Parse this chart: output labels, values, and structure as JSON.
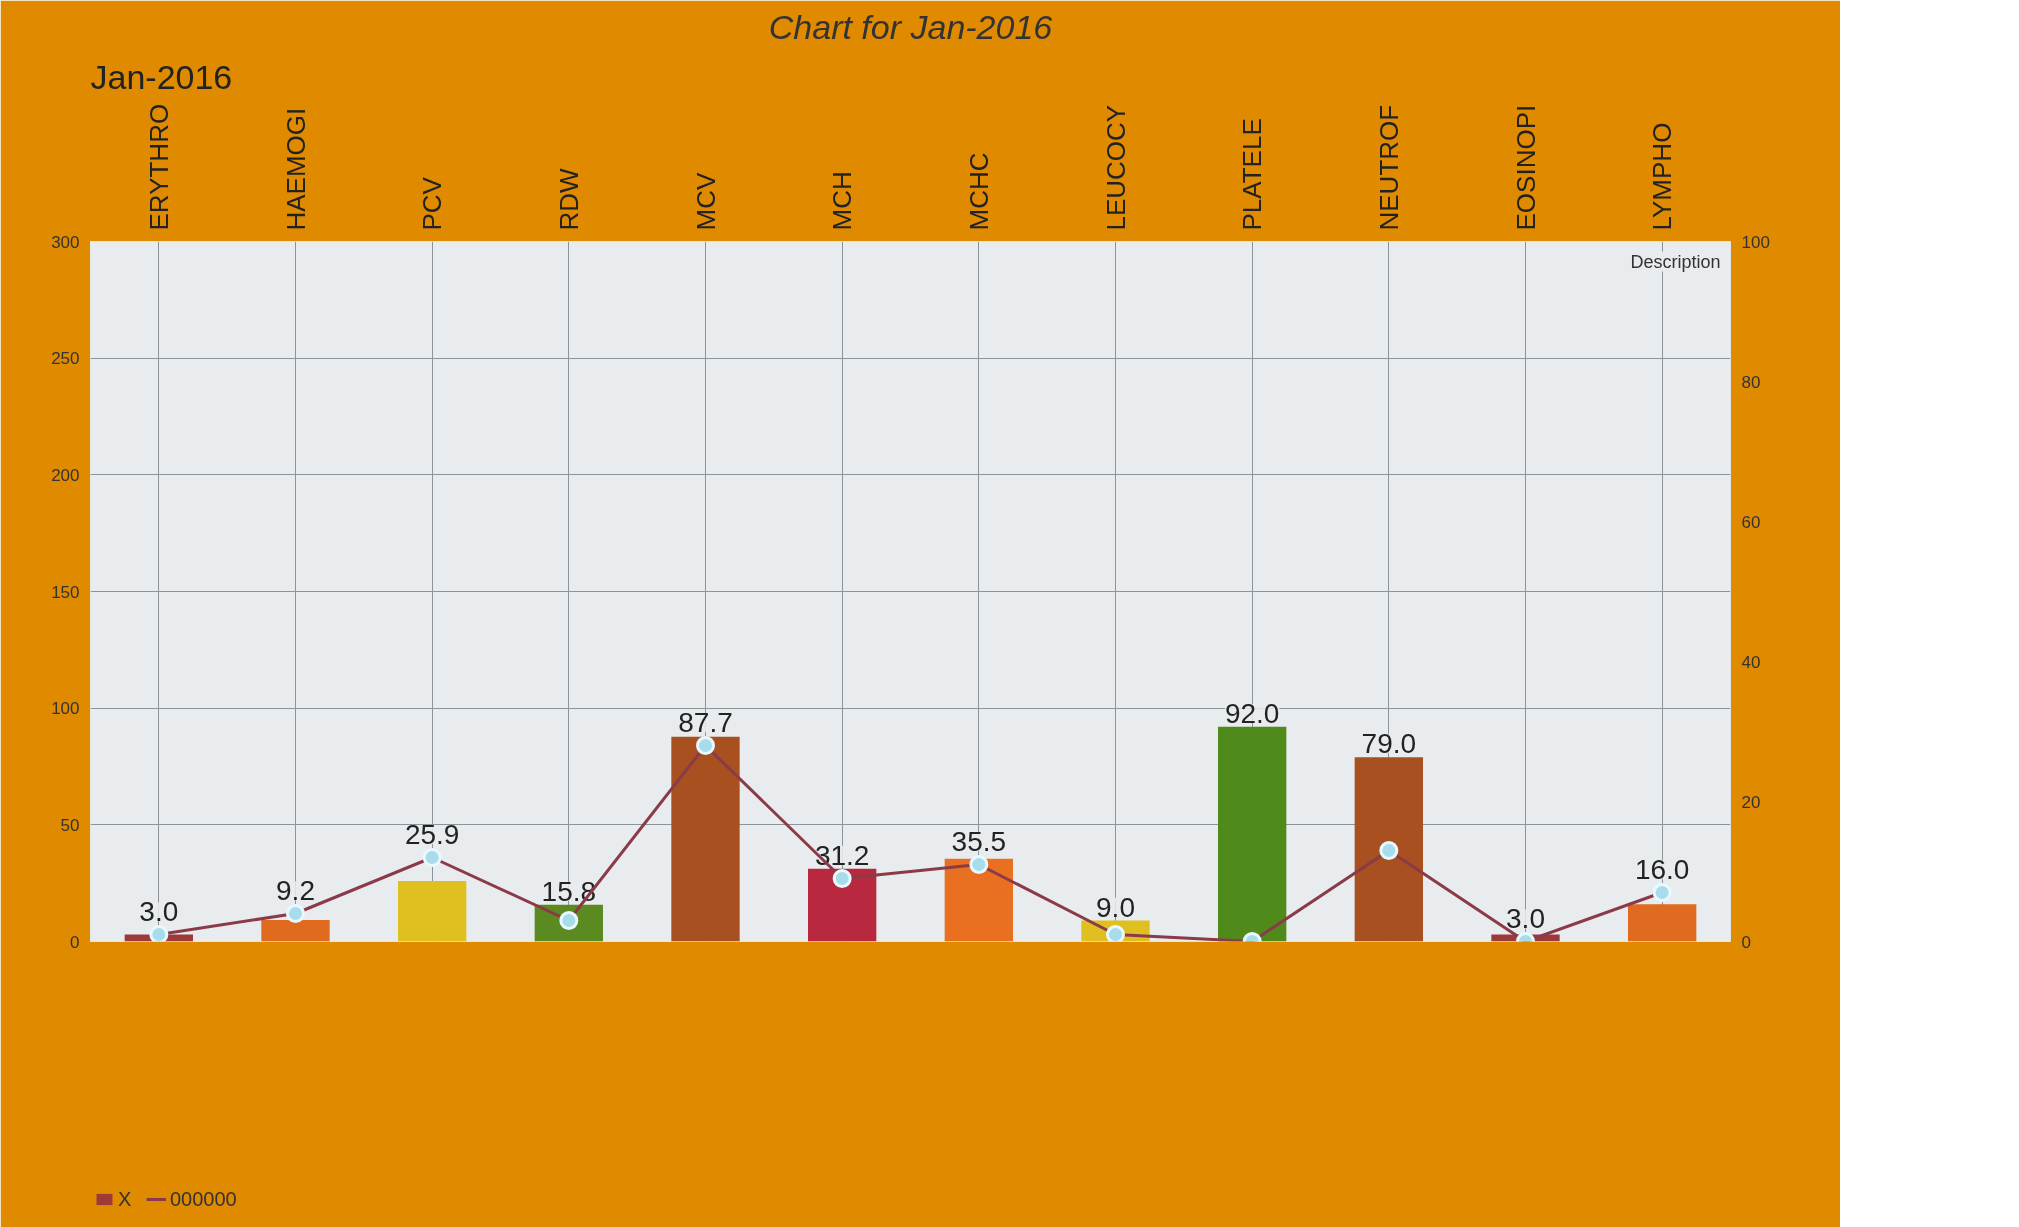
{
  "chart_data": {
    "type": "bar",
    "title": "Chart for Jan-2016",
    "categories": [
      "ERYTHRO",
      "HAEMOGI",
      "PCV",
      "RDW",
      "MCV",
      "MCH",
      "MCHC",
      "LEUCOCY",
      "PLATELE",
      "NEUTROF",
      "EOSINOPI",
      "LYMPHO"
    ],
    "series": [
      {
        "name": "X",
        "type": "bar",
        "colors": [
          "#9c3a3a",
          "#e06a20",
          "#e0c020",
          "#5a8a20",
          "#a85020",
          "#b8283f",
          "#e87020",
          "#e0c020",
          "#4f8a1a",
          "#a85020",
          "#9c3a3a",
          "#e06a20"
        ],
        "values": [
          3.0,
          9.2,
          25.9,
          15.8,
          87.7,
          31.2,
          35.5,
          9.0,
          92.0,
          79.0,
          3.0,
          16.0
        ],
        "value_labels": [
          "3.0",
          "9.2",
          "25.9",
          "15.8",
          "87.7",
          "31.2",
          "35.5",
          "9.0",
          "92.0",
          "79.0",
          "3.0",
          "16.0"
        ]
      },
      {
        "name": "000000",
        "type": "line",
        "axis": "y2",
        "color": "#8b3a4a",
        "marker": "circle",
        "values": [
          1,
          4,
          12,
          3,
          28,
          9,
          11,
          1,
          0,
          13,
          0,
          7
        ]
      }
    ],
    "ylim": [
      0,
      300
    ],
    "yticks": [
      0,
      50,
      100,
      150,
      200,
      250,
      300
    ],
    "y2lim": [
      0,
      100
    ],
    "y2ticks": [
      0,
      20,
      40,
      60,
      80,
      100
    ],
    "grid": true,
    "legend": "bottom left",
    "annotations": [
      "Jan-2016",
      "Description"
    ]
  }
}
